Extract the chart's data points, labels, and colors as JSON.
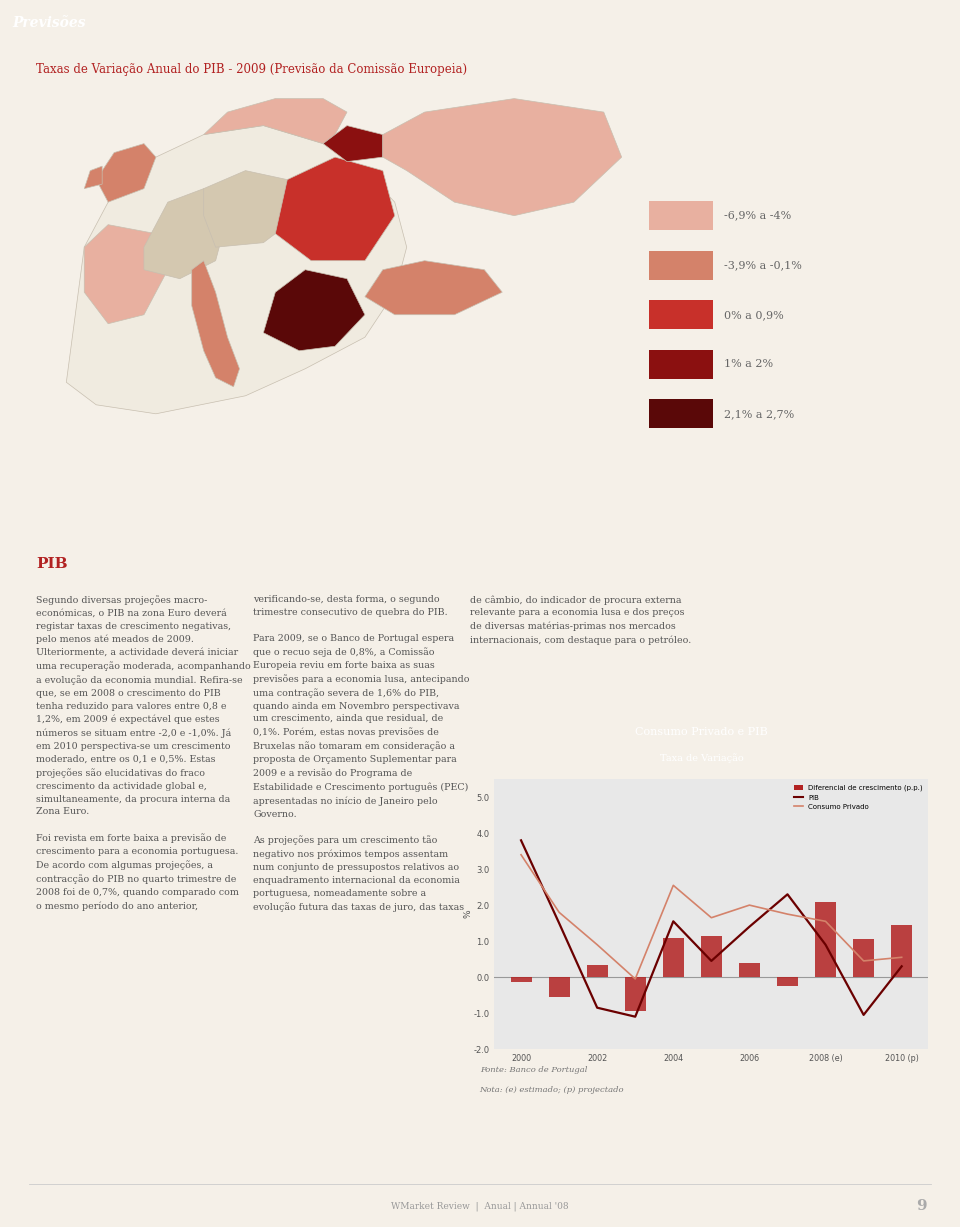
{
  "page_bg": "#f5f0e8",
  "header_bg": "#b22222",
  "header_text": "Previsões",
  "header_text_color": "#ffffff",
  "title_text": "Taxas de Variação Anual do PIB - 2009 (Previsão da Comissão Europeia)",
  "title_color": "#b22222",
  "map_bg": "#a8bfcc",
  "legend_colors": [
    "#e8b0a0",
    "#d4826a",
    "#c8302a",
    "#8b1010",
    "#5a0808"
  ],
  "legend_labels": [
    "-6,9% a -4%",
    "-3,9% a -0,1%",
    "0% a 0,9%",
    "1% a 2%",
    "2,1% a 2,7%"
  ],
  "pib_label": "PIB",
  "body_left_text": "Segundo diversas projeções macro-\neconómicas, o PIB na zona Euro deverá\nregistar taxas de crescimento negativas,\npelo menos até meados de 2009.\nUlteriormente, a actividade deverá iniciar\numa recuperação moderada, acompanhando\na evolução da economia mundial. Refira-se\nque, se em 2008 o crescimento do PIB\ntenha reduzido para valores entre 0,8 e\n1,2%, em 2009 é expectável que estes\nnúmeros se situam entre -2,0 e -1,0%. Já\nem 2010 perspectiva-se um crescimento\nmoderado, entre os 0,1 e 0,5%. Estas\nprojeções são elucidativas do fraco\ncrescimento da actividade global e,\nsimultaneamente, da procura interna da\nZona Euro.\n\nFoi revista em forte baixa a previsão de\ncrescimento para a economia portuguesa.\nDe acordo com algumas projeções, a\ncontracção do PIB no quarto trimestre de\n2008 foi de 0,7%, quando comparado com\no mesmo período do ano anterior,",
  "body_center_text": "verificando-se, desta forma, o segundo\ntrimestre consecutivo de quebra do PIB.\n\nPara 2009, se o Banco de Portugal espera\nque o recuo seja de 0,8%, a Comissão\nEuropeia reviu em forte baixa as suas\nprevisões para a economia lusa, antecipando\numa contração severa de 1,6% do PIB,\nquando ainda em Novembro perspectivava\num crescimento, ainda que residual, de\n0,1%. Porém, estas novas previsões de\nBruxelas não tomaram em consideração a\nproposta de Orçamento Suplementar para\n2009 e a revisão do Programa de\nEstabilidade e Crescimento português (PEC)\napresentadas no início de Janeiro pelo\nGoverno.\n\nAs projeções para um crescimento tão\nnegativo nos próximos tempos assentam\nnum conjunto de pressupostos relativos ao\nenquadramento internacional da economia\nportuguesa, nomeadamente sobre a\nevolução futura das taxas de juro, das taxas",
  "body_right_text": "de câmbio, do indicador de procura externa\nrelevante para a economia lusa e dos preços\nde diversas matérias-primas nos mercados\ninternacionais, com destaque para o petróleo.",
  "chart_title": "Consumo Privado e PIB",
  "chart_subtitle": "Taxa de Variação",
  "chart_bg": "#e8e8e8",
  "chart_header_bg": "#b22222",
  "chart_header_text_color": "#ffffff",
  "chart_ylabel": "%",
  "bar_color": "#b22222",
  "pib_line_color": "#6b0000",
  "consumo_line_color": "#d4826a",
  "legend_bar_label": "Diferencial de crescimento (p.p.)",
  "legend_pib_label": "PIB",
  "legend_consumo_label": "Consumo Privado",
  "footer_note1": "Fonte: Banco de Portugal",
  "footer_note2": "Nota: (e) estimado; (p) projectado",
  "watermark": "WMarket Review  |  Anual | Annual '08",
  "page_number": "9",
  "bar_x": [
    2000,
    2001,
    2002,
    2003,
    2004,
    2005,
    2006,
    2007,
    2008,
    2009,
    2010
  ],
  "bar_values": [
    -0.15,
    -0.55,
    0.35,
    -0.95,
    1.1,
    1.15,
    0.4,
    -0.25,
    2.1,
    1.05,
    1.45
  ],
  "pib_x": [
    2000,
    2001,
    2002,
    2003,
    2004,
    2005,
    2006,
    2007,
    2008,
    2009,
    2010
  ],
  "pib_y": [
    3.8,
    1.5,
    -0.85,
    -1.1,
    1.55,
    0.45,
    1.4,
    2.3,
    0.9,
    -1.05,
    0.3
  ],
  "consumo_x": [
    2000,
    2001,
    2002,
    2003,
    2004,
    2005,
    2006,
    2007,
    2008,
    2009,
    2010
  ],
  "consumo_y": [
    3.4,
    1.8,
    0.9,
    -0.05,
    2.55,
    1.65,
    2.0,
    1.75,
    1.55,
    0.45,
    0.55
  ]
}
